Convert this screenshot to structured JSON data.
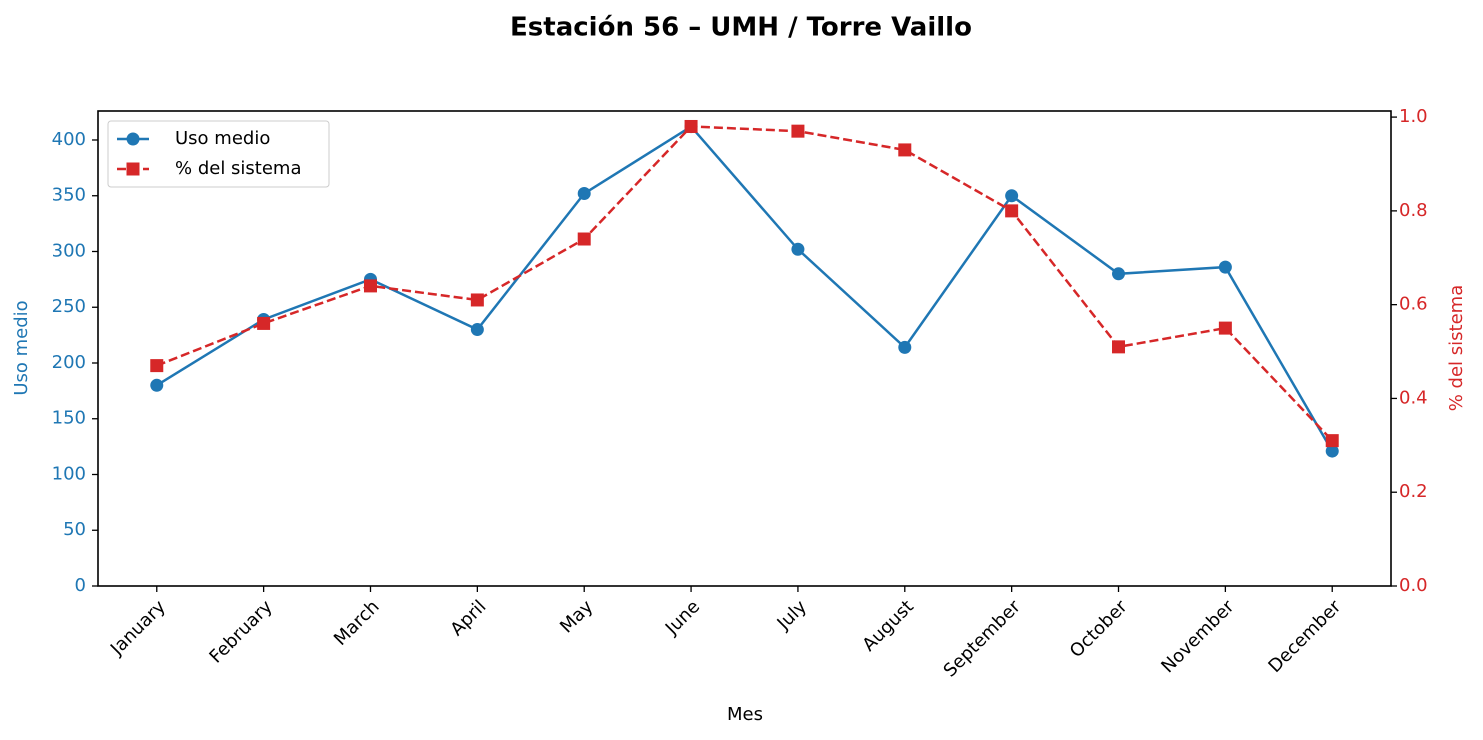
{
  "chart_data": {
    "type": "line",
    "title": "Estación 56 – UMH / Torre Vaillo",
    "x_label": "Mes",
    "y_label": "Uso medio",
    "y2_label": "% del sistema",
    "categories": [
      "January",
      "February",
      "March",
      "April",
      "May",
      "June",
      "July",
      "August",
      "September",
      "October",
      "November",
      "December"
    ],
    "series": [
      {
        "name": "Uso medio",
        "color": "#1f77b4",
        "marker": "circle",
        "linestyle": "solid",
        "axis": "y",
        "values": [
          180,
          239,
          275,
          230,
          352,
          412,
          302,
          214,
          350,
          280,
          286,
          121
        ]
      },
      {
        "name": "% del sistema",
        "color": "#d62728",
        "marker": "square",
        "linestyle": "dashed",
        "axis": "y2",
        "values": [
          0.47,
          0.56,
          0.64,
          0.61,
          0.74,
          0.98,
          0.97,
          0.93,
          0.8,
          0.51,
          0.55,
          0.31
        ]
      }
    ],
    "ylim": [
      0,
      426
    ],
    "yticks": [
      0,
      50,
      100,
      150,
      200,
      250,
      300,
      350,
      400
    ],
    "y2lim": [
      0,
      1.013
    ],
    "y2ticks": [
      {
        "value": 0,
        "label": "0.0"
      },
      0.2,
      0.4,
      0.6,
      0.8,
      {
        "value": 1,
        "label": "1.0"
      }
    ],
    "legend": "upper left",
    "grid": false
  }
}
